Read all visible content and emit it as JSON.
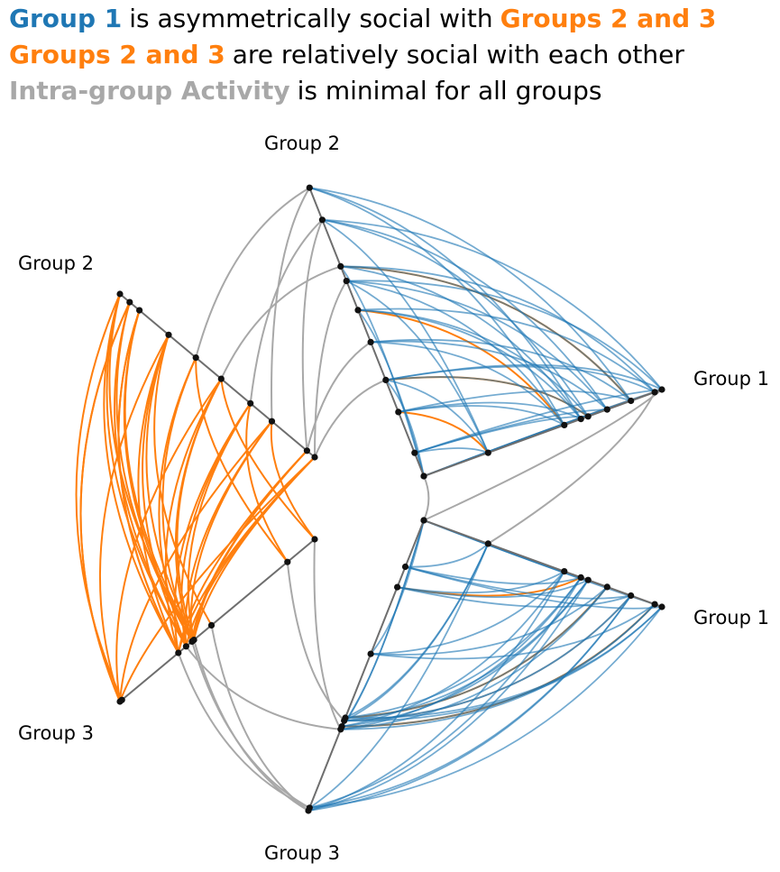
{
  "headline": {
    "line1": {
      "a": "Group 1",
      "b": "is asymmetrically social with",
      "c": "Groups 2 and 3"
    },
    "line2": {
      "a": "Groups 2 and 3",
      "b": "are relatively social with each other"
    },
    "line3": {
      "a": "Intra-group Activity",
      "b": "is minimal for all groups"
    }
  },
  "axis_labels": {
    "g1_upper": "Group 1",
    "g1_lower": "Group 1",
    "g2_top": "Group 2",
    "g2_left": "Group 2",
    "g3_left": "Group 3",
    "g3_bottom": "Group 3"
  },
  "colors": {
    "group1": "#1f77b4",
    "group23": "#ff7f0e",
    "intra": "#a8a8a8",
    "axis": "#6e6e6e",
    "node": "#111111"
  }
}
